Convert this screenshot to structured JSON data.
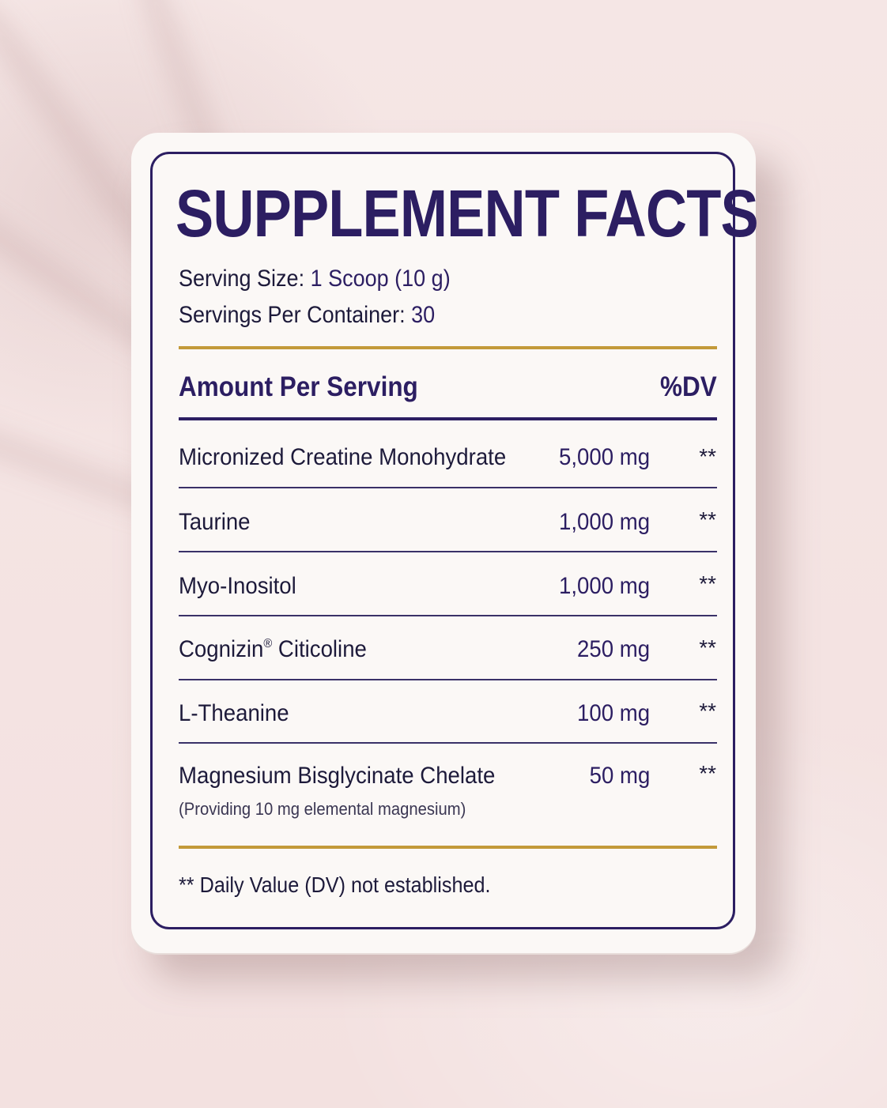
{
  "label": {
    "title": "SUPPLEMENT FACTS",
    "serving_size_label": "Serving Size:",
    "serving_size_value": "1 Scoop (10 g)",
    "servings_per_container_label": "Servings Per Container:",
    "servings_per_container_value": "30",
    "amount_header": "Amount Per Serving",
    "dv_header": "%DV",
    "ingredients": [
      {
        "name": "Micronized Creatine Monohydrate",
        "name_mark": "",
        "name_tail": "",
        "amount": "5,000 mg",
        "dv": "**"
      },
      {
        "name": "Taurine",
        "name_mark": "",
        "name_tail": "",
        "amount": "1,000 mg",
        "dv": "**"
      },
      {
        "name": "Myo-Inositol",
        "name_mark": "",
        "name_tail": "",
        "amount": "1,000 mg",
        "dv": "**"
      },
      {
        "name": "Cognizin",
        "name_mark": "®",
        "name_tail": " Citicoline",
        "amount": "250 mg",
        "dv": "**"
      },
      {
        "name": "L-Theanine",
        "name_mark": "",
        "name_tail": "",
        "amount": "100 mg",
        "dv": "**"
      },
      {
        "name": "Magnesium Bisglycinate Chelate",
        "name_mark": "",
        "name_tail": "",
        "amount": "50 mg",
        "dv": "**",
        "note": "(Providing 10 mg elemental magnesium)"
      }
    ],
    "footnote": "** Daily Value (DV) not established."
  },
  "colors": {
    "navy": "#2c1e62",
    "gold": "#c39a3a",
    "background": "#f4e3e2",
    "card": "#fbf8f6"
  }
}
